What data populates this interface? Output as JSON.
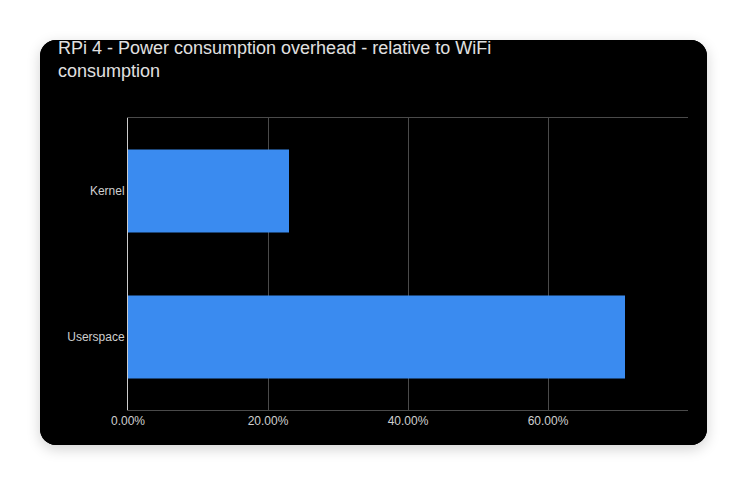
{
  "chart_data": {
    "type": "bar",
    "title": "RPi 4 - Power consumption overhead - relative to WiFi consumption",
    "orientation": "horizontal",
    "categories": [
      "Kernel",
      "Userspace"
    ],
    "values": [
      23,
      71
    ],
    "color": "#3a8bf0",
    "xlim": [
      0,
      80
    ],
    "xticks": [
      {
        "value": 0,
        "label": "0.00%"
      },
      {
        "value": 20,
        "label": "20.00%"
      },
      {
        "value": 40,
        "label": "40.00%"
      },
      {
        "value": 60,
        "label": "60.00%"
      }
    ],
    "grid": true
  }
}
